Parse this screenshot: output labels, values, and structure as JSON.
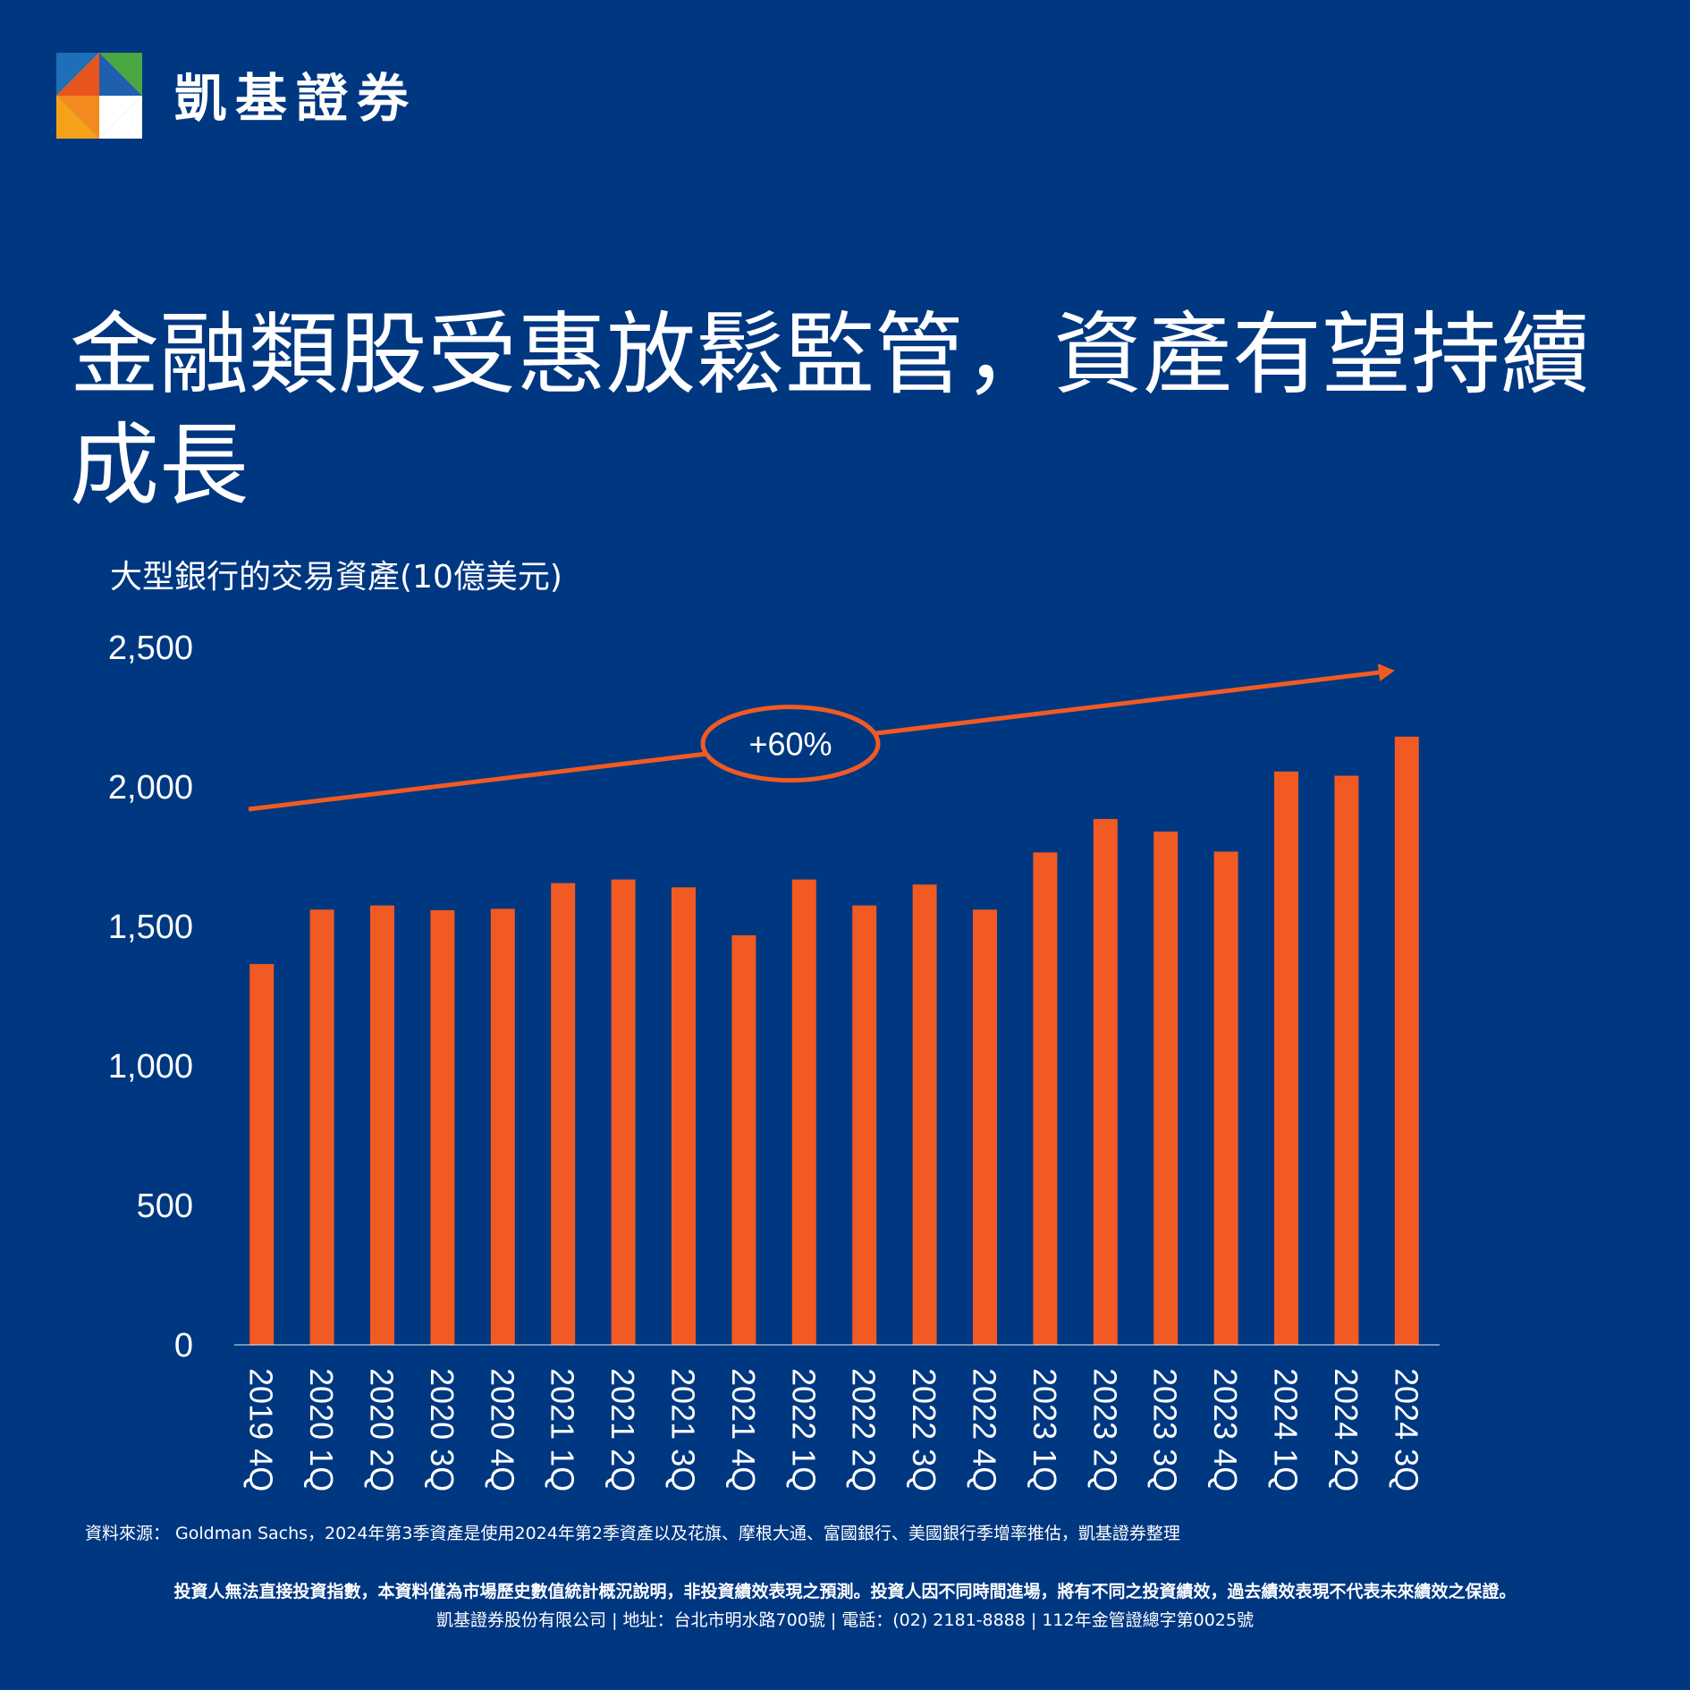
{
  "brand": {
    "name": "凱基證券",
    "colors": {
      "background": "#003781",
      "accent": "#F15A22",
      "text": "#FFFFFF"
    },
    "logo_icon": "kgi-logo-icon"
  },
  "headline": "金融類股受惠放鬆監管，資產有望持續成長",
  "subtitle": "大型銀行的交易資產(10億美元)",
  "chart_data": {
    "type": "bar",
    "title": "大型銀行的交易資產(10億美元)",
    "categories": [
      "2019 4Q",
      "2020 1Q",
      "2020 2Q",
      "2020 3Q",
      "2020 4Q",
      "2021 1Q",
      "2021 2Q",
      "2021 3Q",
      "2021 4Q",
      "2022 1Q",
      "2022 2Q",
      "2022 3Q",
      "2022 4Q",
      "2023 1Q",
      "2023 2Q",
      "2023 3Q",
      "2023 4Q",
      "2024 1Q",
      "2024 2Q",
      "2024 3Q"
    ],
    "values": [
      1365,
      1560,
      1575,
      1558,
      1563,
      1655,
      1668,
      1640,
      1468,
      1668,
      1575,
      1650,
      1560,
      1765,
      1885,
      1840,
      1768,
      2055,
      2040,
      2180
    ],
    "ylim": [
      0,
      2500
    ],
    "yticks": [
      0,
      500,
      1000,
      1500,
      2000,
      2500
    ],
    "ytick_labels": [
      "0",
      "500",
      "1,000",
      "1,500",
      "2,000",
      "2,500"
    ],
    "bar_color": "#F15A22",
    "grid": false,
    "annotation": {
      "text": "+60%",
      "trend_from": 1920,
      "trend_to": 2410
    }
  },
  "source": "資料來源： Goldman Sachs，2024年第3季資產是使用2024年第2季資產以及花旗、摩根大通、富國銀行、美國銀行季增率推估，凱基證券整理",
  "disclaimer": "投資人無法直接投資指數，本資料僅為市場歷史數值統計概況說明，非投資績效表現之預測。投資人因不同時間進場，將有不同之投資績效，過去績效表現不代表未來績效之保證。",
  "company_info": "凱基證券股份有限公司 | 地址：台北市明水路700號 | 電話：(02) 2181-8888 | 112年金管證總字第0025號"
}
